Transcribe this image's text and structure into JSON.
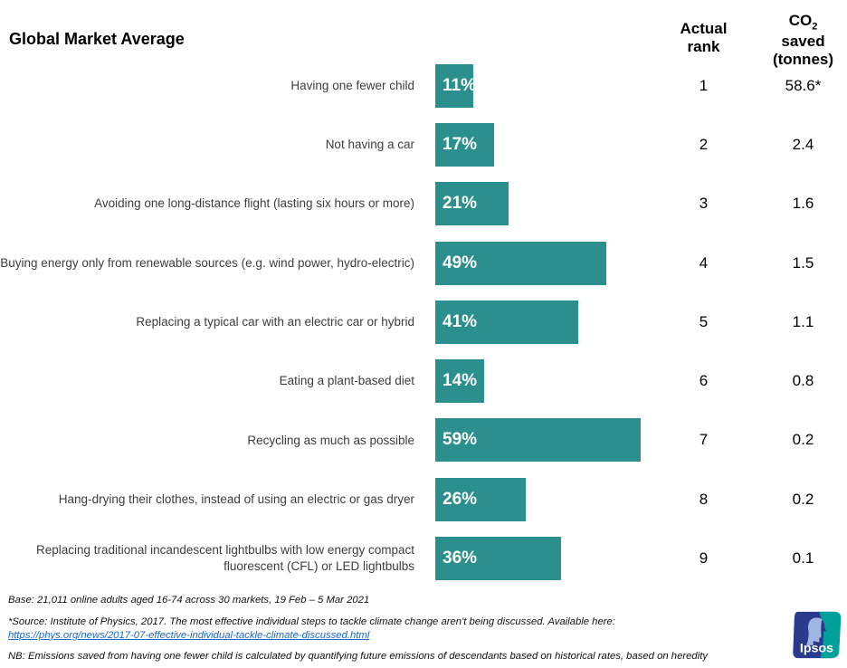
{
  "title": "Global Market Average",
  "columns": {
    "rank_line1": "Actual",
    "rank_line2": "rank",
    "co2_prefix": "CO",
    "co2_sub": "2",
    "co2_line2": "saved",
    "co2_line3": "(tonnes)"
  },
  "chart_data": {
    "type": "bar",
    "orientation": "horizontal",
    "title": "Global Market Average",
    "unit": "%",
    "bar_color": "#2b908d",
    "value_label_suffix": "%",
    "xlim": [
      0,
      65
    ],
    "categories": [
      "Having one fewer child",
      "Not having a car",
      "Avoiding one long-distance flight (lasting six hours or more)",
      "Buying energy only from renewable sources (e.g. wind power, hydro-electric)",
      "Replacing a typical car with an electric car or hybrid",
      "Eating a plant-based diet",
      "Recycling as much as possible",
      "Hang-drying their clothes, instead of using an electric or gas dryer",
      "Replacing traditional incandescent lightbulbs with low energy compact fluorescent (CFL) or LED lightbulbs"
    ],
    "values": [
      11,
      17,
      21,
      49,
      41,
      14,
      59,
      26,
      36
    ],
    "ranks": [
      "1",
      "2",
      "3",
      "4",
      "5",
      "6",
      "7",
      "8",
      "9"
    ],
    "co2_saved": [
      "58.6*",
      "2.4",
      "1.6",
      "1.5",
      "1.1",
      "0.8",
      "0.2",
      "0.2",
      "0.1"
    ]
  },
  "footer": {
    "base": "Base: 21,011 online adults aged 16-74 across 30 markets,  19 Feb – 5 Mar 2021",
    "source": "*Source: Institute of Physics, 2017. The most effective individual steps to tackle climate change aren't being discussed. Available here:",
    "link": "https://phys.org/news/2017-07-effective-individual-tackle-climate-discussed.html",
    "nb": "NB: Emissions saved from having one fewer child is calculated by quantifying future emissions of descendants based on historical rates, based on heredity"
  },
  "logo": {
    "text": "Ipsos",
    "navy": "#2a3b8f",
    "teal": "#00a19a",
    "face": "#9fb6e2"
  }
}
